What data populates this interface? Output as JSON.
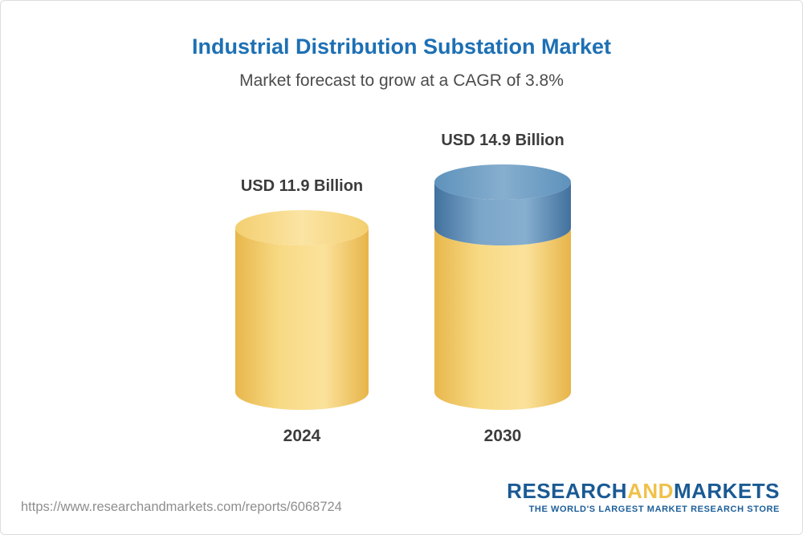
{
  "header": {
    "title": "Industrial Distribution Substation Market",
    "subtitle": "Market forecast to grow at a CAGR of 3.8%"
  },
  "chart_data": {
    "type": "bar",
    "categories": [
      "2024",
      "2030"
    ],
    "values": [
      11.9,
      14.9
    ],
    "unit": "USD Billion",
    "value_labels": [
      "USD 11.9 Billion",
      "USD 14.9 Billion"
    ],
    "baseline_value": 11.9,
    "cagr": "3.8%",
    "legend_position": "none",
    "grid": false,
    "colors": {
      "yellow_body": [
        "#E8B74C",
        "#F8DA85",
        "#FBE29B",
        "#E7B449"
      ],
      "yellow_top": [
        "#F3CF70",
        "#FBE4A4",
        "#F3CF70"
      ],
      "blue_body": [
        "#41719E",
        "#7CA6C9",
        "#86AECF",
        "#41719E"
      ],
      "blue_top": [
        "#5E92BC",
        "#86AECE",
        "#5E92BC"
      ],
      "title_blue": "#1d70b4"
    }
  },
  "footer": {
    "url": "https://www.researchandmarkets.com/reports/6068724",
    "logo": {
      "part1": "RESEARCH",
      "part2": "AND",
      "part3": "MARKETS",
      "tagline": "THE WORLD'S LARGEST MARKET RESEARCH STORE"
    }
  }
}
